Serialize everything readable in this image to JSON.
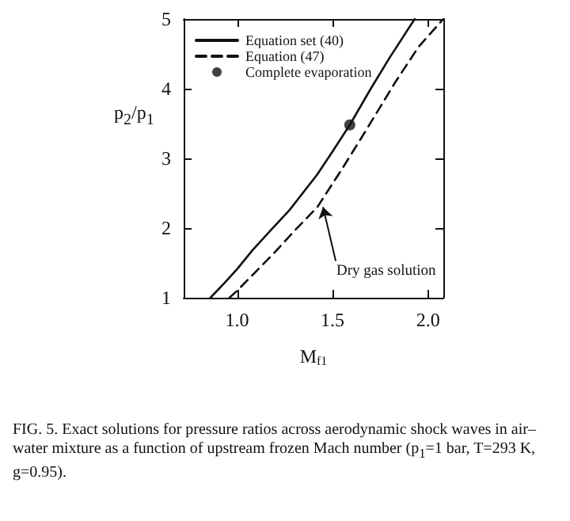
{
  "chart_data": {
    "type": "line",
    "xlabel": "M$_{f1}$",
    "ylabel": "p$_{2}$/p$_{1}$",
    "xlim": [
      0.72,
      2.08
    ],
    "xticks": [
      {
        "value": 1,
        "label": "1.0"
      },
      {
        "value": 1.5,
        "label": "1.5"
      },
      {
        "value": 2,
        "label": "2.0"
      }
    ],
    "ylim": [
      1,
      5
    ],
    "yticks": [
      1,
      2,
      3,
      4,
      5
    ],
    "series": [
      {
        "name": "Equation set (40)",
        "color": "#111111",
        "line_style": "solid",
        "x": [
          0.86,
          0.93,
          1.0,
          1.08,
          1.17,
          1.275,
          1.42,
          1.5,
          1.59,
          1.7,
          1.8,
          1.93
        ],
        "values": [
          1,
          1.2,
          1.41,
          1.68,
          1.95,
          2.26,
          2.77,
          3.1,
          3.48,
          4.0,
          4.45,
          5
        ]
      },
      {
        "name": "Equation (47)",
        "color": "#111111",
        "line_style": "dashed",
        "x": [
          0.96,
          1.0,
          1.1,
          1.2,
          1.3,
          1.42,
          1.55,
          1.67,
          1.83,
          1.95,
          2.08
        ],
        "values": [
          1,
          1.1,
          1.38,
          1.66,
          1.96,
          2.3,
          2.85,
          3.38,
          4.1,
          4.6,
          5
        ]
      },
      {
        "name": "Complete evaporation",
        "type": "scatter",
        "marker": "circle",
        "color": "#111111",
        "x": [
          1.59
        ],
        "values": [
          3.48
        ]
      }
    ],
    "annotations": [
      {
        "text": "Dry gas solution",
        "x": 1.45,
        "y": 2.3
      },
      "FIG. 5. Exact solutions for pressure ratios across aerodynamic shock waves in air–water mixture as a function of upstream frozen Mach number (p$_{1}$=1 bar, T=293 K, g=0.95)."
    ],
    "legend": "top left",
    "grid": false
  }
}
